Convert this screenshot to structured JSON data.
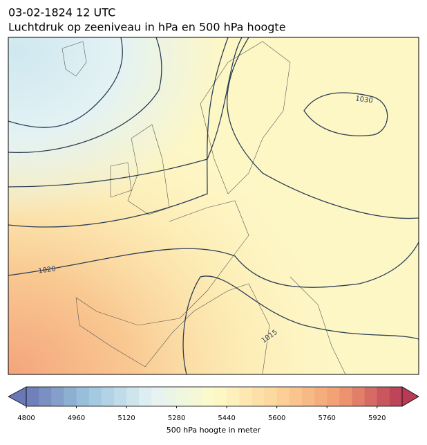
{
  "header": {
    "title": "03-02-1824 12 UTC",
    "subtitle": "Luchtdruk op zeeniveau in hPa en 500 hPa hoogte"
  },
  "map": {
    "isobar_labels": [
      1030,
      1020,
      1015
    ]
  },
  "colorbar": {
    "range": [
      4800,
      6000
    ],
    "step": 40,
    "ticks": [
      4800,
      4960,
      5120,
      5280,
      5440,
      5600,
      5760,
      5920
    ],
    "label": "500 hPa hoogte in meter",
    "colors": [
      "#6b78b6",
      "#9cc6de",
      "#e3f2f4",
      "#fdfbc9",
      "#fcd59a",
      "#f29c72",
      "#b83a55"
    ]
  }
}
